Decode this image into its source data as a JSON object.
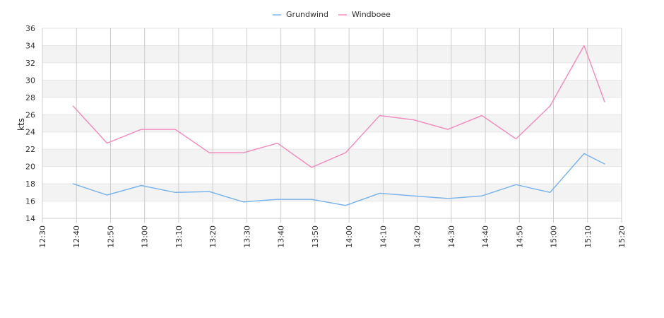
{
  "chart_data": {
    "type": "line",
    "title": "",
    "xlabel": "",
    "ylabel": "kts",
    "ylim": [
      14,
      36
    ],
    "yticks": [
      14,
      16,
      18,
      20,
      22,
      24,
      26,
      28,
      30,
      32,
      34,
      36
    ],
    "xticks": [
      "12:30",
      "12:40",
      "12:50",
      "13:00",
      "13:10",
      "13:20",
      "13:30",
      "13:40",
      "13:50",
      "14:00",
      "14:10",
      "14:20",
      "14:30",
      "14:40",
      "14:50",
      "15:00",
      "15:10",
      "15:20"
    ],
    "xlim": [
      "12:30",
      "15:20"
    ],
    "grid": true,
    "legend_position": "top-center",
    "x": [
      "12:39",
      "12:49",
      "12:59",
      "13:09",
      "13:19",
      "13:29",
      "13:39",
      "13:49",
      "13:59",
      "14:09",
      "14:19",
      "14:29",
      "14:39",
      "14:49",
      "14:59",
      "15:09",
      "15:15"
    ],
    "series": [
      {
        "name": "Grundwind",
        "color": "#7cb5ec",
        "values": [
          18.0,
          16.7,
          17.8,
          17.0,
          17.1,
          15.9,
          16.2,
          16.2,
          15.5,
          16.9,
          16.6,
          16.3,
          16.6,
          17.9,
          17.0,
          21.5,
          20.3
        ]
      },
      {
        "name": "Windboee",
        "color": "#f28fbf",
        "values": [
          27.0,
          22.7,
          24.3,
          24.3,
          21.6,
          21.6,
          22.7,
          19.9,
          21.6,
          25.9,
          25.4,
          24.3,
          25.9,
          23.2,
          27.0,
          34.0,
          27.5
        ]
      }
    ]
  }
}
